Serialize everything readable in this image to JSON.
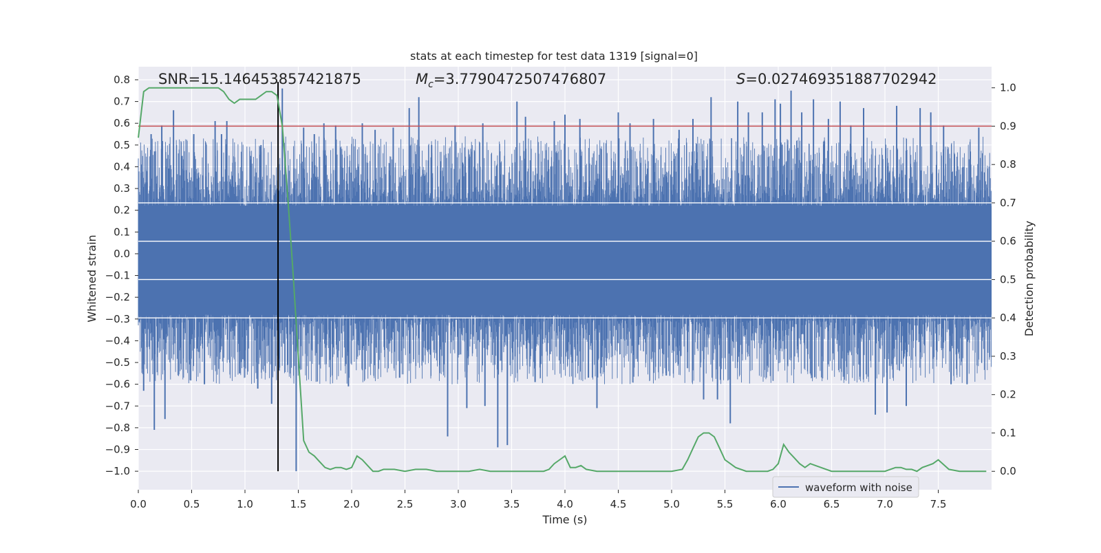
{
  "chart_data": {
    "type": "line",
    "title": "stats at each timestep for test data 1319 [signal=0]",
    "xlabel": "Time (s)",
    "ylabel_left": "Whitened strain",
    "ylabel_right": "Detection probability",
    "xlim": [
      0.0,
      8.0
    ],
    "ylim_left": [
      -1.085,
      0.86
    ],
    "ylim_right": [
      -0.048,
      1.055
    ],
    "x_ticks": [
      "0.0",
      "0.5",
      "1.0",
      "1.5",
      "2.0",
      "2.5",
      "3.0",
      "3.5",
      "4.0",
      "4.5",
      "5.0",
      "5.5",
      "6.0",
      "6.5",
      "7.0",
      "7.5"
    ],
    "x_tick_values": [
      0.0,
      0.5,
      1.0,
      1.5,
      2.0,
      2.5,
      3.0,
      3.5,
      4.0,
      4.5,
      5.0,
      5.5,
      6.0,
      6.5,
      7.0,
      7.5
    ],
    "y_left_ticks": [
      "0.8",
      "0.7",
      "0.6",
      "0.5",
      "0.4",
      "0.3",
      "0.2",
      "0.1",
      "0.0",
      "-0.1",
      "-0.2",
      "-0.3",
      "-0.4",
      "-0.5",
      "-0.6",
      "-0.7",
      "-0.8",
      "-0.9",
      "-1.0"
    ],
    "y_left_tick_values": [
      0.8,
      0.7,
      0.6,
      0.5,
      0.4,
      0.3,
      0.2,
      0.1,
      0.0,
      -0.1,
      -0.2,
      -0.3,
      -0.4,
      -0.5,
      -0.6,
      -0.7,
      -0.8,
      -0.9,
      -1.0
    ],
    "y_right_ticks": [
      "1.0",
      "0.9",
      "0.8",
      "0.7",
      "0.6",
      "0.5",
      "0.4",
      "0.3",
      "0.2",
      "0.1",
      "0.0"
    ],
    "y_right_tick_values": [
      1.0,
      0.9,
      0.8,
      0.7,
      0.6,
      0.5,
      0.4,
      0.3,
      0.2,
      0.1,
      0.0
    ],
    "grid": true,
    "background": "#eaeaf2",
    "annotations": {
      "snr": "SNR=15.146453857421875",
      "mc_symbol": "M",
      "mc_subscript": "c",
      "mc_value": "=3.7790472507476807",
      "s_symbol": "S",
      "s_value": "=0.027469351887702942"
    },
    "legend": {
      "label": "waveform with noise",
      "position": "lower-right"
    },
    "series": [
      {
        "name": "waveform with noise",
        "color": "#4c72b0",
        "description_kind": "noise",
        "band": {
          "upper_typical": 0.42,
          "lower_typical": -0.5
        },
        "spikes": [
          {
            "x": 0.05,
            "y": -0.63
          },
          {
            "x": 0.12,
            "y": 0.55
          },
          {
            "x": 0.15,
            "y": -0.81
          },
          {
            "x": 0.22,
            "y": 0.59
          },
          {
            "x": 0.25,
            "y": -0.76
          },
          {
            "x": 0.33,
            "y": 0.66
          },
          {
            "x": 0.41,
            "y": 0.45
          },
          {
            "x": 0.52,
            "y": 0.55
          },
          {
            "x": 0.62,
            "y": -0.6
          },
          {
            "x": 0.72,
            "y": 0.61
          },
          {
            "x": 0.78,
            "y": 0.55
          },
          {
            "x": 0.83,
            "y": 0.61
          },
          {
            "x": 0.95,
            "y": -0.55
          },
          {
            "x": 1.05,
            "y": 0.45
          },
          {
            "x": 1.12,
            "y": -0.62
          },
          {
            "x": 1.15,
            "y": 0.5
          },
          {
            "x": 1.22,
            "y": 0.1
          },
          {
            "x": 1.25,
            "y": -0.69
          },
          {
            "x": 1.35,
            "y": 0.76
          },
          {
            "x": 1.48,
            "y": -1.0
          },
          {
            "x": 1.55,
            "y": 0.58
          },
          {
            "x": 1.65,
            "y": 0.55
          },
          {
            "x": 1.74,
            "y": 0.6
          },
          {
            "x": 1.85,
            "y": 0.59
          },
          {
            "x": 1.97,
            "y": -0.61
          },
          {
            "x": 2.1,
            "y": 0.6
          },
          {
            "x": 2.22,
            "y": 0.57
          },
          {
            "x": 2.39,
            "y": 0.58
          },
          {
            "x": 2.45,
            "y": -0.57
          },
          {
            "x": 2.54,
            "y": 0.67
          },
          {
            "x": 2.63,
            "y": 0.72
          },
          {
            "x": 2.75,
            "y": 0.5
          },
          {
            "x": 2.9,
            "y": -0.84
          },
          {
            "x": 2.97,
            "y": 0.59
          },
          {
            "x": 3.08,
            "y": -0.71
          },
          {
            "x": 3.23,
            "y": 0.6
          },
          {
            "x": 3.25,
            "y": -0.7
          },
          {
            "x": 3.37,
            "y": -0.89
          },
          {
            "x": 3.46,
            "y": -0.88
          },
          {
            "x": 3.55,
            "y": 0.7
          },
          {
            "x": 3.63,
            "y": 0.63
          },
          {
            "x": 3.72,
            "y": -0.59
          },
          {
            "x": 3.9,
            "y": 0.61
          },
          {
            "x": 4.0,
            "y": 0.64
          },
          {
            "x": 4.14,
            "y": 0.62
          },
          {
            "x": 4.22,
            "y": -0.57
          },
          {
            "x": 4.3,
            "y": -0.71
          },
          {
            "x": 4.5,
            "y": 0.65
          },
          {
            "x": 4.61,
            "y": 0.6
          },
          {
            "x": 4.83,
            "y": 0.62
          },
          {
            "x": 4.95,
            "y": -0.56
          },
          {
            "x": 5.07,
            "y": 0.57
          },
          {
            "x": 5.2,
            "y": 0.62
          },
          {
            "x": 5.3,
            "y": -0.67
          },
          {
            "x": 5.37,
            "y": 0.72
          },
          {
            "x": 5.43,
            "y": -0.67
          },
          {
            "x": 5.55,
            "y": -0.78
          },
          {
            "x": 5.62,
            "y": 0.7
          },
          {
            "x": 5.72,
            "y": 0.65
          },
          {
            "x": 5.85,
            "y": 0.65
          },
          {
            "x": 5.97,
            "y": 0.71
          },
          {
            "x": 6.02,
            "y": 0.69
          },
          {
            "x": 6.12,
            "y": 0.75
          },
          {
            "x": 6.22,
            "y": 0.65
          },
          {
            "x": 6.33,
            "y": 0.71
          },
          {
            "x": 6.47,
            "y": 0.62
          },
          {
            "x": 6.58,
            "y": 0.7
          },
          {
            "x": 6.68,
            "y": 0.59
          },
          {
            "x": 6.8,
            "y": 0.67
          },
          {
            "x": 6.91,
            "y": -0.74
          },
          {
            "x": 7.02,
            "y": -0.73
          },
          {
            "x": 7.11,
            "y": 0.68
          },
          {
            "x": 7.2,
            "y": -0.7
          },
          {
            "x": 7.33,
            "y": 0.67
          },
          {
            "x": 7.43,
            "y": 0.65
          },
          {
            "x": 7.55,
            "y": 0.59
          },
          {
            "x": 7.62,
            "y": -0.6
          },
          {
            "x": 7.77,
            "y": -0.6
          },
          {
            "x": 7.88,
            "y": 0.58
          }
        ]
      },
      {
        "axis": "right",
        "color": "#55a868",
        "x": [
          0.0,
          0.05,
          0.1,
          0.15,
          0.2,
          0.3,
          0.4,
          0.5,
          0.6,
          0.7,
          0.75,
          0.8,
          0.85,
          0.9,
          0.95,
          1.0,
          1.05,
          1.1,
          1.15,
          1.2,
          1.25,
          1.3,
          1.35,
          1.4,
          1.45,
          1.5,
          1.55,
          1.6,
          1.65,
          1.7,
          1.75,
          1.8,
          1.85,
          1.9,
          1.95,
          2.0,
          2.05,
          2.1,
          2.15,
          2.2,
          2.25,
          2.3,
          2.4,
          2.5,
          2.6,
          2.7,
          2.8,
          2.9,
          3.0,
          3.1,
          3.2,
          3.3,
          3.4,
          3.5,
          3.6,
          3.7,
          3.8,
          3.85,
          3.9,
          3.95,
          4.0,
          4.05,
          4.1,
          4.15,
          4.2,
          4.3,
          4.4,
          4.5,
          4.7,
          4.9,
          5.0,
          5.1,
          5.15,
          5.2,
          5.25,
          5.3,
          5.35,
          5.4,
          5.45,
          5.5,
          5.55,
          5.6,
          5.7,
          5.8,
          5.9,
          5.95,
          6.0,
          6.05,
          6.1,
          6.15,
          6.2,
          6.25,
          6.3,
          6.35,
          6.4,
          6.5,
          6.6,
          6.7,
          6.8,
          6.9,
          7.0,
          7.05,
          7.1,
          7.15,
          7.2,
          7.25,
          7.3,
          7.35,
          7.4,
          7.45,
          7.5,
          7.6,
          7.7,
          7.8,
          7.9,
          7.95
        ],
        "values": [
          0.87,
          0.99,
          1.0,
          1.0,
          1.0,
          1.0,
          1.0,
          1.0,
          1.0,
          1.0,
          1.0,
          0.99,
          0.97,
          0.96,
          0.97,
          0.97,
          0.97,
          0.97,
          0.98,
          0.99,
          0.99,
          0.98,
          0.9,
          0.72,
          0.52,
          0.3,
          0.08,
          0.05,
          0.04,
          0.025,
          0.01,
          0.005,
          0.01,
          0.01,
          0.005,
          0.01,
          0.04,
          0.03,
          0.015,
          0.0,
          0.0,
          0.005,
          0.005,
          0.0,
          0.005,
          0.005,
          0.0,
          0.0,
          0.0,
          0.0,
          0.005,
          0.0,
          0.0,
          0.0,
          0.0,
          0.0,
          0.0,
          0.005,
          0.02,
          0.03,
          0.04,
          0.01,
          0.01,
          0.015,
          0.005,
          0.0,
          0.0,
          0.0,
          0.0,
          0.0,
          0.0,
          0.005,
          0.03,
          0.06,
          0.09,
          0.1,
          0.1,
          0.09,
          0.06,
          0.03,
          0.02,
          0.01,
          0.0,
          0.0,
          0.0,
          0.005,
          0.02,
          0.07,
          0.05,
          0.035,
          0.02,
          0.01,
          0.02,
          0.015,
          0.01,
          0.0,
          0.0,
          0.0,
          0.0,
          0.0,
          0.0,
          0.005,
          0.01,
          0.01,
          0.005,
          0.005,
          0.0,
          0.01,
          0.015,
          0.02,
          0.03,
          0.005,
          0.0,
          0.0,
          0.0,
          0.0
        ]
      }
    ],
    "hlines": [
      {
        "axis": "right",
        "y": 0.9,
        "color": "#c44e52"
      }
    ],
    "vlines": [
      {
        "x": 1.31,
        "color": "#000000"
      }
    ]
  }
}
